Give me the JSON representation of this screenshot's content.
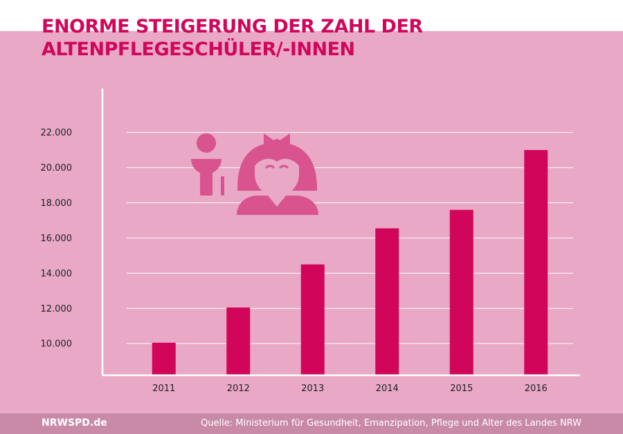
{
  "title_lines": [
    "ENORME STEIGERUNG DER ZAHL DER",
    "ALTENPFLEGESCHÜLER/-INNEN"
  ],
  "footer": {
    "brand": "NRWSPD.de",
    "source": "Quelle: Ministerium für Gesundheit, Emanzipation, Pflege und Alter des Landes NRW"
  },
  "colors": {
    "background": "#e8a8c6",
    "accent": "#d1065a",
    "icon": "#d9548f",
    "footer": "#c98aa8"
  },
  "icons": [
    "male-student-icon",
    "female-nurse-icon"
  ],
  "chart_data": {
    "type": "bar",
    "categories": [
      "2011",
      "2012",
      "2013",
      "2014",
      "2015",
      "2016"
    ],
    "values": [
      10050,
      12050,
      14500,
      16550,
      17600,
      21000
    ],
    "y_ticks": [
      "10.000",
      "12.000",
      "14.000",
      "16.000",
      "18.000",
      "20.000",
      "22.000"
    ],
    "y_tick_values": [
      10000,
      12000,
      14000,
      16000,
      18000,
      20000,
      22000
    ],
    "ylim": [
      8200,
      24500
    ],
    "grid": true,
    "legend": "none",
    "title": "ENORME STEIGERUNG DER ZAHL DER ALTENPFLEGESCHÜLER/-INNEN",
    "xlabel": "",
    "ylabel": ""
  }
}
